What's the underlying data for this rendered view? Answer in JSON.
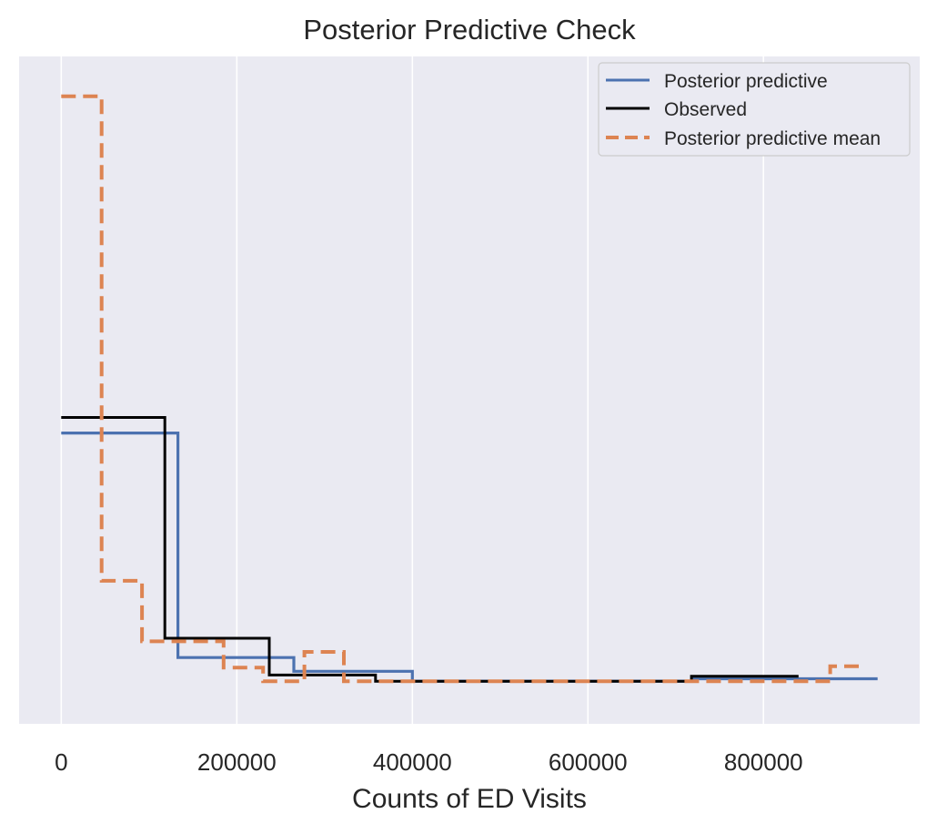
{
  "chart_data": {
    "type": "line",
    "title": "Posterior Predictive Check",
    "xlabel": "Counts of ED Visits",
    "ylabel": "",
    "xlim": [
      -48000,
      978000
    ],
    "ylim": [
      0,
      1
    ],
    "grid": true,
    "y_ticks_shown": false,
    "x_ticks": [
      0,
      200000,
      400000,
      600000,
      800000
    ],
    "x_tick_labels": [
      "0",
      "200000",
      "400000",
      "600000",
      "800000"
    ],
    "legend": {
      "placement": "top-right",
      "entries": [
        "Posterior predictive",
        "Observed",
        "Posterior predictive mean"
      ]
    },
    "colors": {
      "background": "#eaeaf2",
      "grid": "#ffffff",
      "posterior_predictive": "#4c72b0",
      "observed": "#000000",
      "posterior_predictive_mean": "#dd8452"
    },
    "series": [
      {
        "name": "Posterior predictive",
        "style": "solid",
        "points": [
          [
            0,
            0.44
          ],
          [
            133000,
            0.44
          ],
          [
            133000,
            0.08
          ],
          [
            265000,
            0.08
          ],
          [
            265000,
            0.058
          ],
          [
            400000,
            0.058
          ],
          [
            400000,
            0.042
          ],
          [
            720000,
            0.042
          ],
          [
            720000,
            0.046
          ],
          [
            930000,
            0.046
          ]
        ]
      },
      {
        "name": "Observed",
        "style": "solid",
        "points": [
          [
            0,
            0.465
          ],
          [
            118000,
            0.465
          ],
          [
            118000,
            0.111
          ],
          [
            237000,
            0.111
          ],
          [
            237000,
            0.052
          ],
          [
            358000,
            0.052
          ],
          [
            358000,
            0.042
          ],
          [
            718000,
            0.042
          ],
          [
            718000,
            0.05
          ],
          [
            840000,
            0.05
          ]
        ]
      },
      {
        "name": "Posterior predictive mean",
        "style": "dashed",
        "points": [
          [
            0,
            0.98
          ],
          [
            46000,
            0.98
          ],
          [
            46000,
            0.203
          ],
          [
            92000,
            0.203
          ],
          [
            92000,
            0.106
          ],
          [
            185000,
            0.106
          ],
          [
            185000,
            0.064
          ],
          [
            230000,
            0.064
          ],
          [
            230000,
            0.042
          ],
          [
            277000,
            0.042
          ],
          [
            277000,
            0.089
          ],
          [
            322000,
            0.089
          ],
          [
            322000,
            0.042
          ],
          [
            876000,
            0.042
          ],
          [
            876000,
            0.066
          ],
          [
            910000,
            0.066
          ]
        ]
      }
    ]
  }
}
